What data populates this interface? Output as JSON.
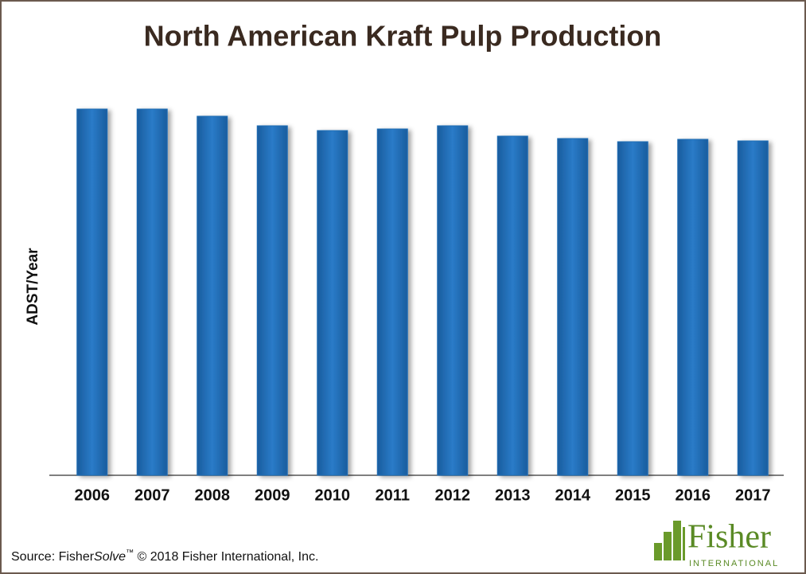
{
  "chart_data": {
    "type": "bar",
    "title": "North American Kraft Pulp Production",
    "y_label": "ADST/Year",
    "categories": [
      "2006",
      "2007",
      "2008",
      "2009",
      "2010",
      "2011",
      "2012",
      "2013",
      "2014",
      "2015",
      "2016",
      "2017"
    ],
    "values": [
      460,
      460,
      451,
      439,
      433,
      435,
      439,
      426,
      423,
      419,
      422,
      420
    ],
    "color": "#1f6db5",
    "ylim": [
      0,
      500
    ]
  },
  "footer": {
    "source_prefix": "Source: Fisher",
    "source_italic": "Solve",
    "source_tm": "™",
    "source_rest": " © 2018 Fisher International, Inc."
  },
  "logo": {
    "name": "Fisher",
    "sub": "INTERNATIONAL"
  }
}
